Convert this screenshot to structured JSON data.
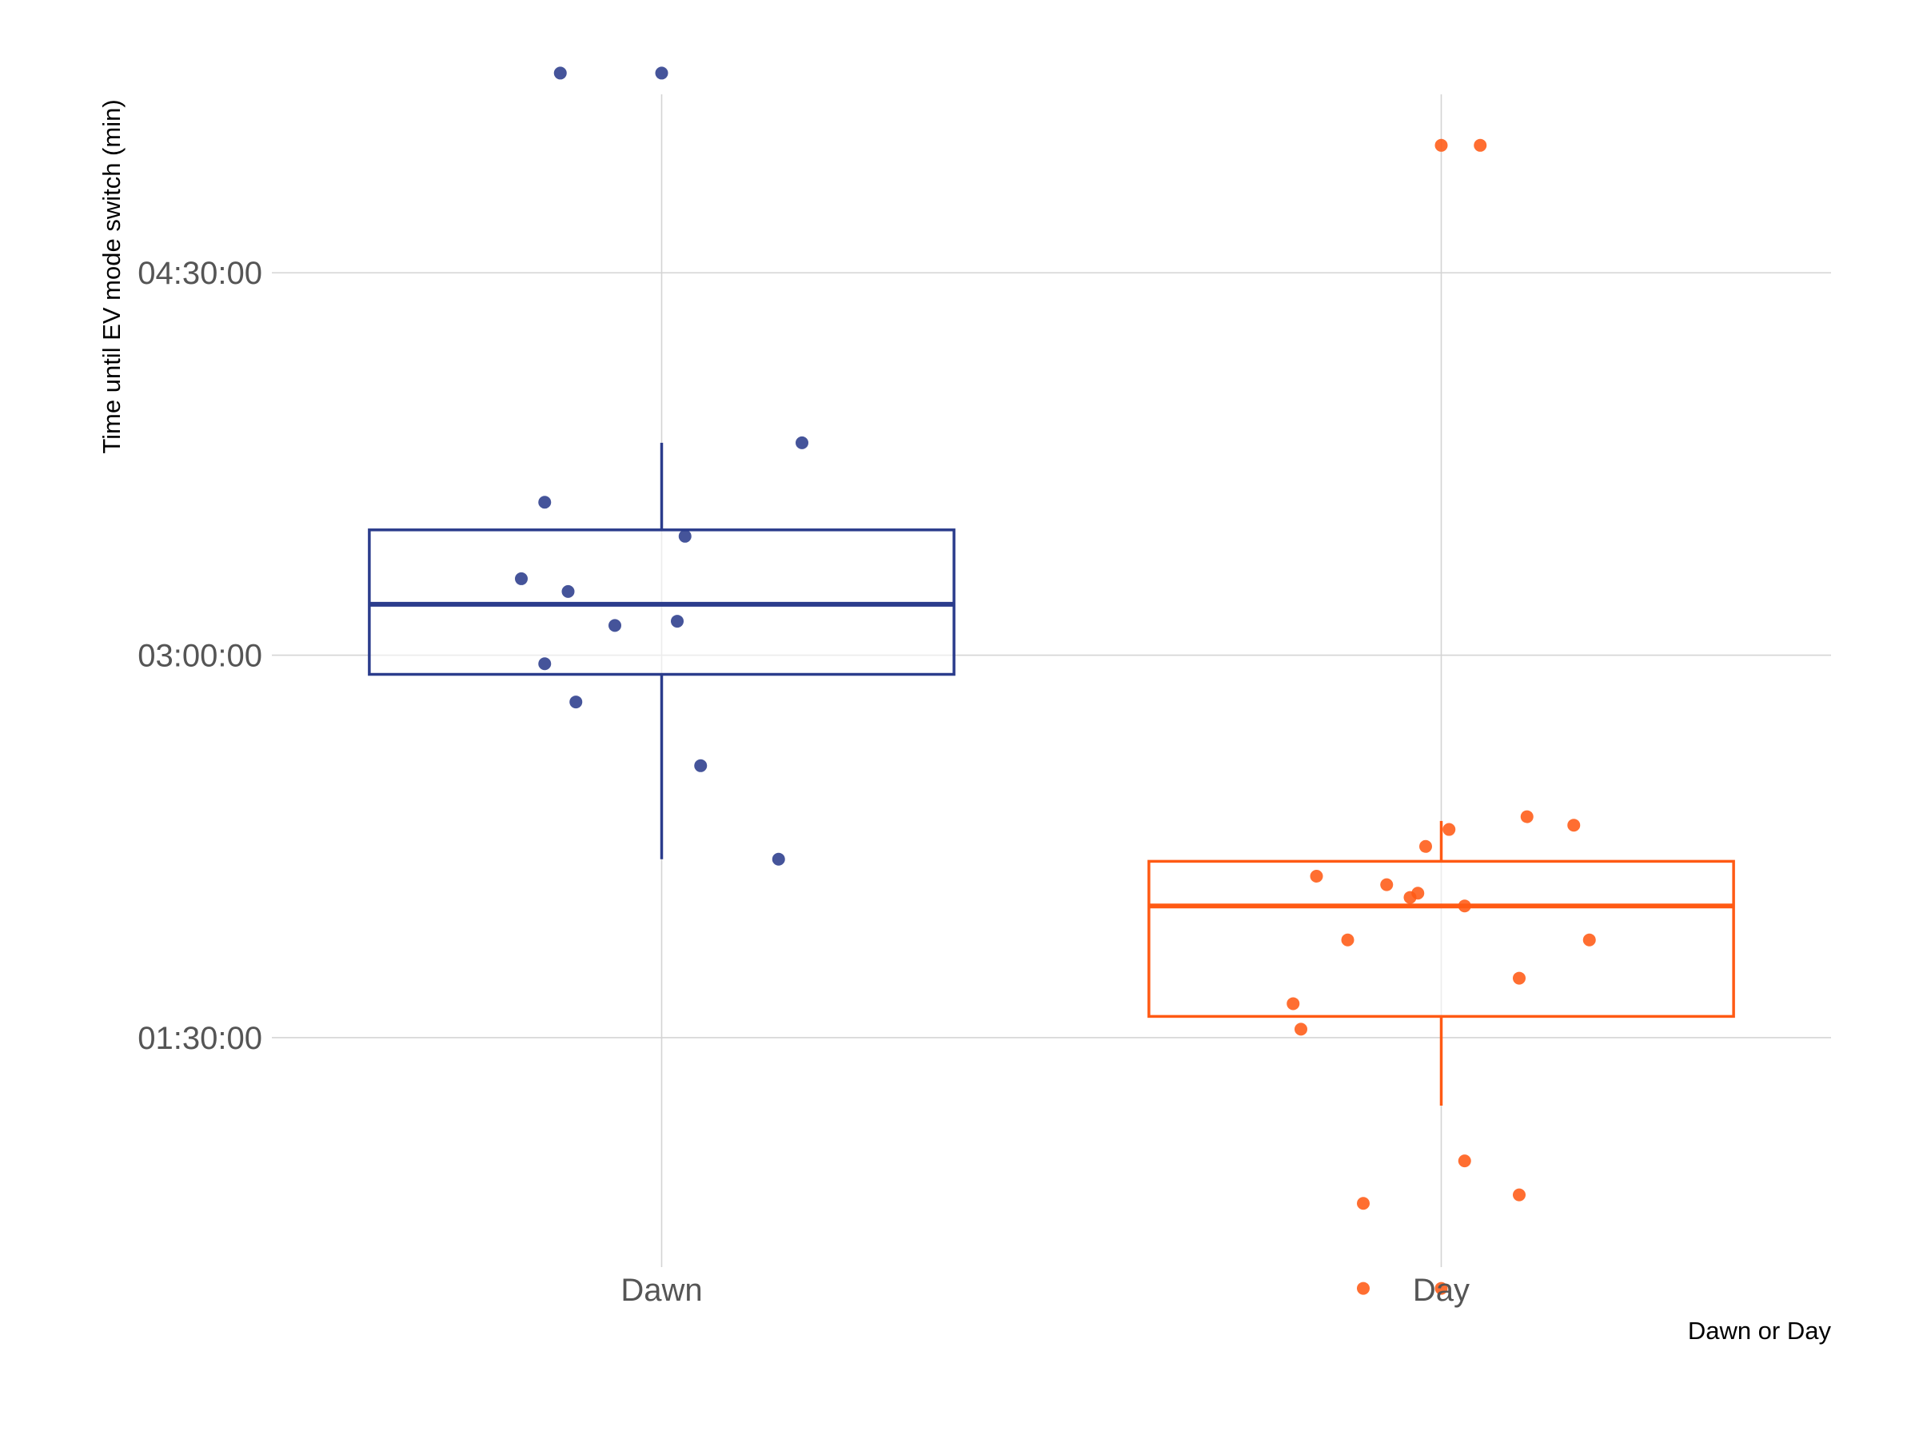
{
  "chart_data": {
    "type": "box",
    "title": "",
    "xlabel": "Dawn or Day",
    "ylabel": "Time until EV mode switch (min)",
    "ylim_minutes": [
      36,
      312
    ],
    "y_ticks": [
      {
        "label": "01:30:00",
        "minutes": 90
      },
      {
        "label": "03:00:00",
        "minutes": 180
      },
      {
        "label": "04:30:00",
        "minutes": 270
      }
    ],
    "categories": [
      "Dawn",
      "Day"
    ],
    "grid": true,
    "colors": {
      "Dawn": "#2b3c8c",
      "Day": "#ff5a14"
    },
    "series": [
      {
        "category": "Dawn",
        "box": {
          "whisker_low": 132,
          "q1": 175.5,
          "median": 192,
          "q3": 209.5,
          "whisker_high": 230
        },
        "points": [
          {
            "jitter": -0.13,
            "minutes": 317
          },
          {
            "jitter": 0.0,
            "minutes": 317
          },
          {
            "jitter": 0.18,
            "minutes": 230
          },
          {
            "jitter": -0.15,
            "minutes": 216
          },
          {
            "jitter": 0.03,
            "minutes": 208
          },
          {
            "jitter": -0.18,
            "minutes": 198
          },
          {
            "jitter": -0.12,
            "minutes": 195
          },
          {
            "jitter": -0.06,
            "minutes": 187
          },
          {
            "jitter": 0.02,
            "minutes": 188
          },
          {
            "jitter": -0.15,
            "minutes": 178
          },
          {
            "jitter": -0.11,
            "minutes": 169
          },
          {
            "jitter": 0.05,
            "minutes": 154
          },
          {
            "jitter": 0.15,
            "minutes": 132
          }
        ]
      },
      {
        "category": "Day",
        "box": {
          "whisker_low": 74,
          "q1": 95,
          "median": 121,
          "q3": 131.5,
          "whisker_high": 141
        },
        "points": [
          {
            "jitter": 0.0,
            "minutes": 300
          },
          {
            "jitter": 0.05,
            "minutes": 300
          },
          {
            "jitter": 0.11,
            "minutes": 142
          },
          {
            "jitter": 0.17,
            "minutes": 140
          },
          {
            "jitter": 0.01,
            "minutes": 139
          },
          {
            "jitter": -0.02,
            "minutes": 135
          },
          {
            "jitter": -0.16,
            "minutes": 128
          },
          {
            "jitter": -0.07,
            "minutes": 126
          },
          {
            "jitter": -0.04,
            "minutes": 123
          },
          {
            "jitter": -0.03,
            "minutes": 124
          },
          {
            "jitter": 0.03,
            "minutes": 121
          },
          {
            "jitter": -0.12,
            "minutes": 113
          },
          {
            "jitter": 0.19,
            "minutes": 113
          },
          {
            "jitter": 0.1,
            "minutes": 104
          },
          {
            "jitter": -0.19,
            "minutes": 98
          },
          {
            "jitter": -0.18,
            "minutes": 92
          },
          {
            "jitter": 0.03,
            "minutes": 61
          },
          {
            "jitter": 0.1,
            "minutes": 53
          },
          {
            "jitter": -0.1,
            "minutes": 51
          },
          {
            "jitter": -0.1,
            "minutes": 31
          },
          {
            "jitter": 0.0,
            "minutes": 31
          }
        ]
      }
    ]
  }
}
